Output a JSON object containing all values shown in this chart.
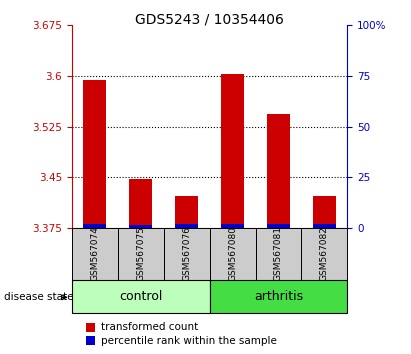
{
  "title": "GDS5243 / 10354406",
  "samples": [
    "GSM567074",
    "GSM567075",
    "GSM567076",
    "GSM567080",
    "GSM567081",
    "GSM567082"
  ],
  "red_values": [
    3.593,
    3.448,
    3.422,
    3.603,
    3.543,
    3.422
  ],
  "blue_values": [
    3.382,
    3.38,
    3.381,
    3.382,
    3.382,
    3.381
  ],
  "ymin": 3.375,
  "ymax": 3.675,
  "yticks_left": [
    3.375,
    3.45,
    3.525,
    3.6,
    3.675
  ],
  "yticks_right": [
    0,
    25,
    50,
    75,
    100
  ],
  "bar_width": 0.5,
  "red_color": "#cc0000",
  "blue_color": "#0000cc",
  "control_color": "#bbffbb",
  "arthritis_color": "#44dd44",
  "label_bg_color": "#cccccc",
  "group_label_text": "disease state",
  "legend_red": "transformed count",
  "legend_blue": "percentile rank within the sample",
  "grid_ticks": [
    3.45,
    3.525,
    3.6
  ],
  "control_indices": [
    0,
    1,
    2
  ],
  "arthritis_indices": [
    3,
    4,
    5
  ]
}
